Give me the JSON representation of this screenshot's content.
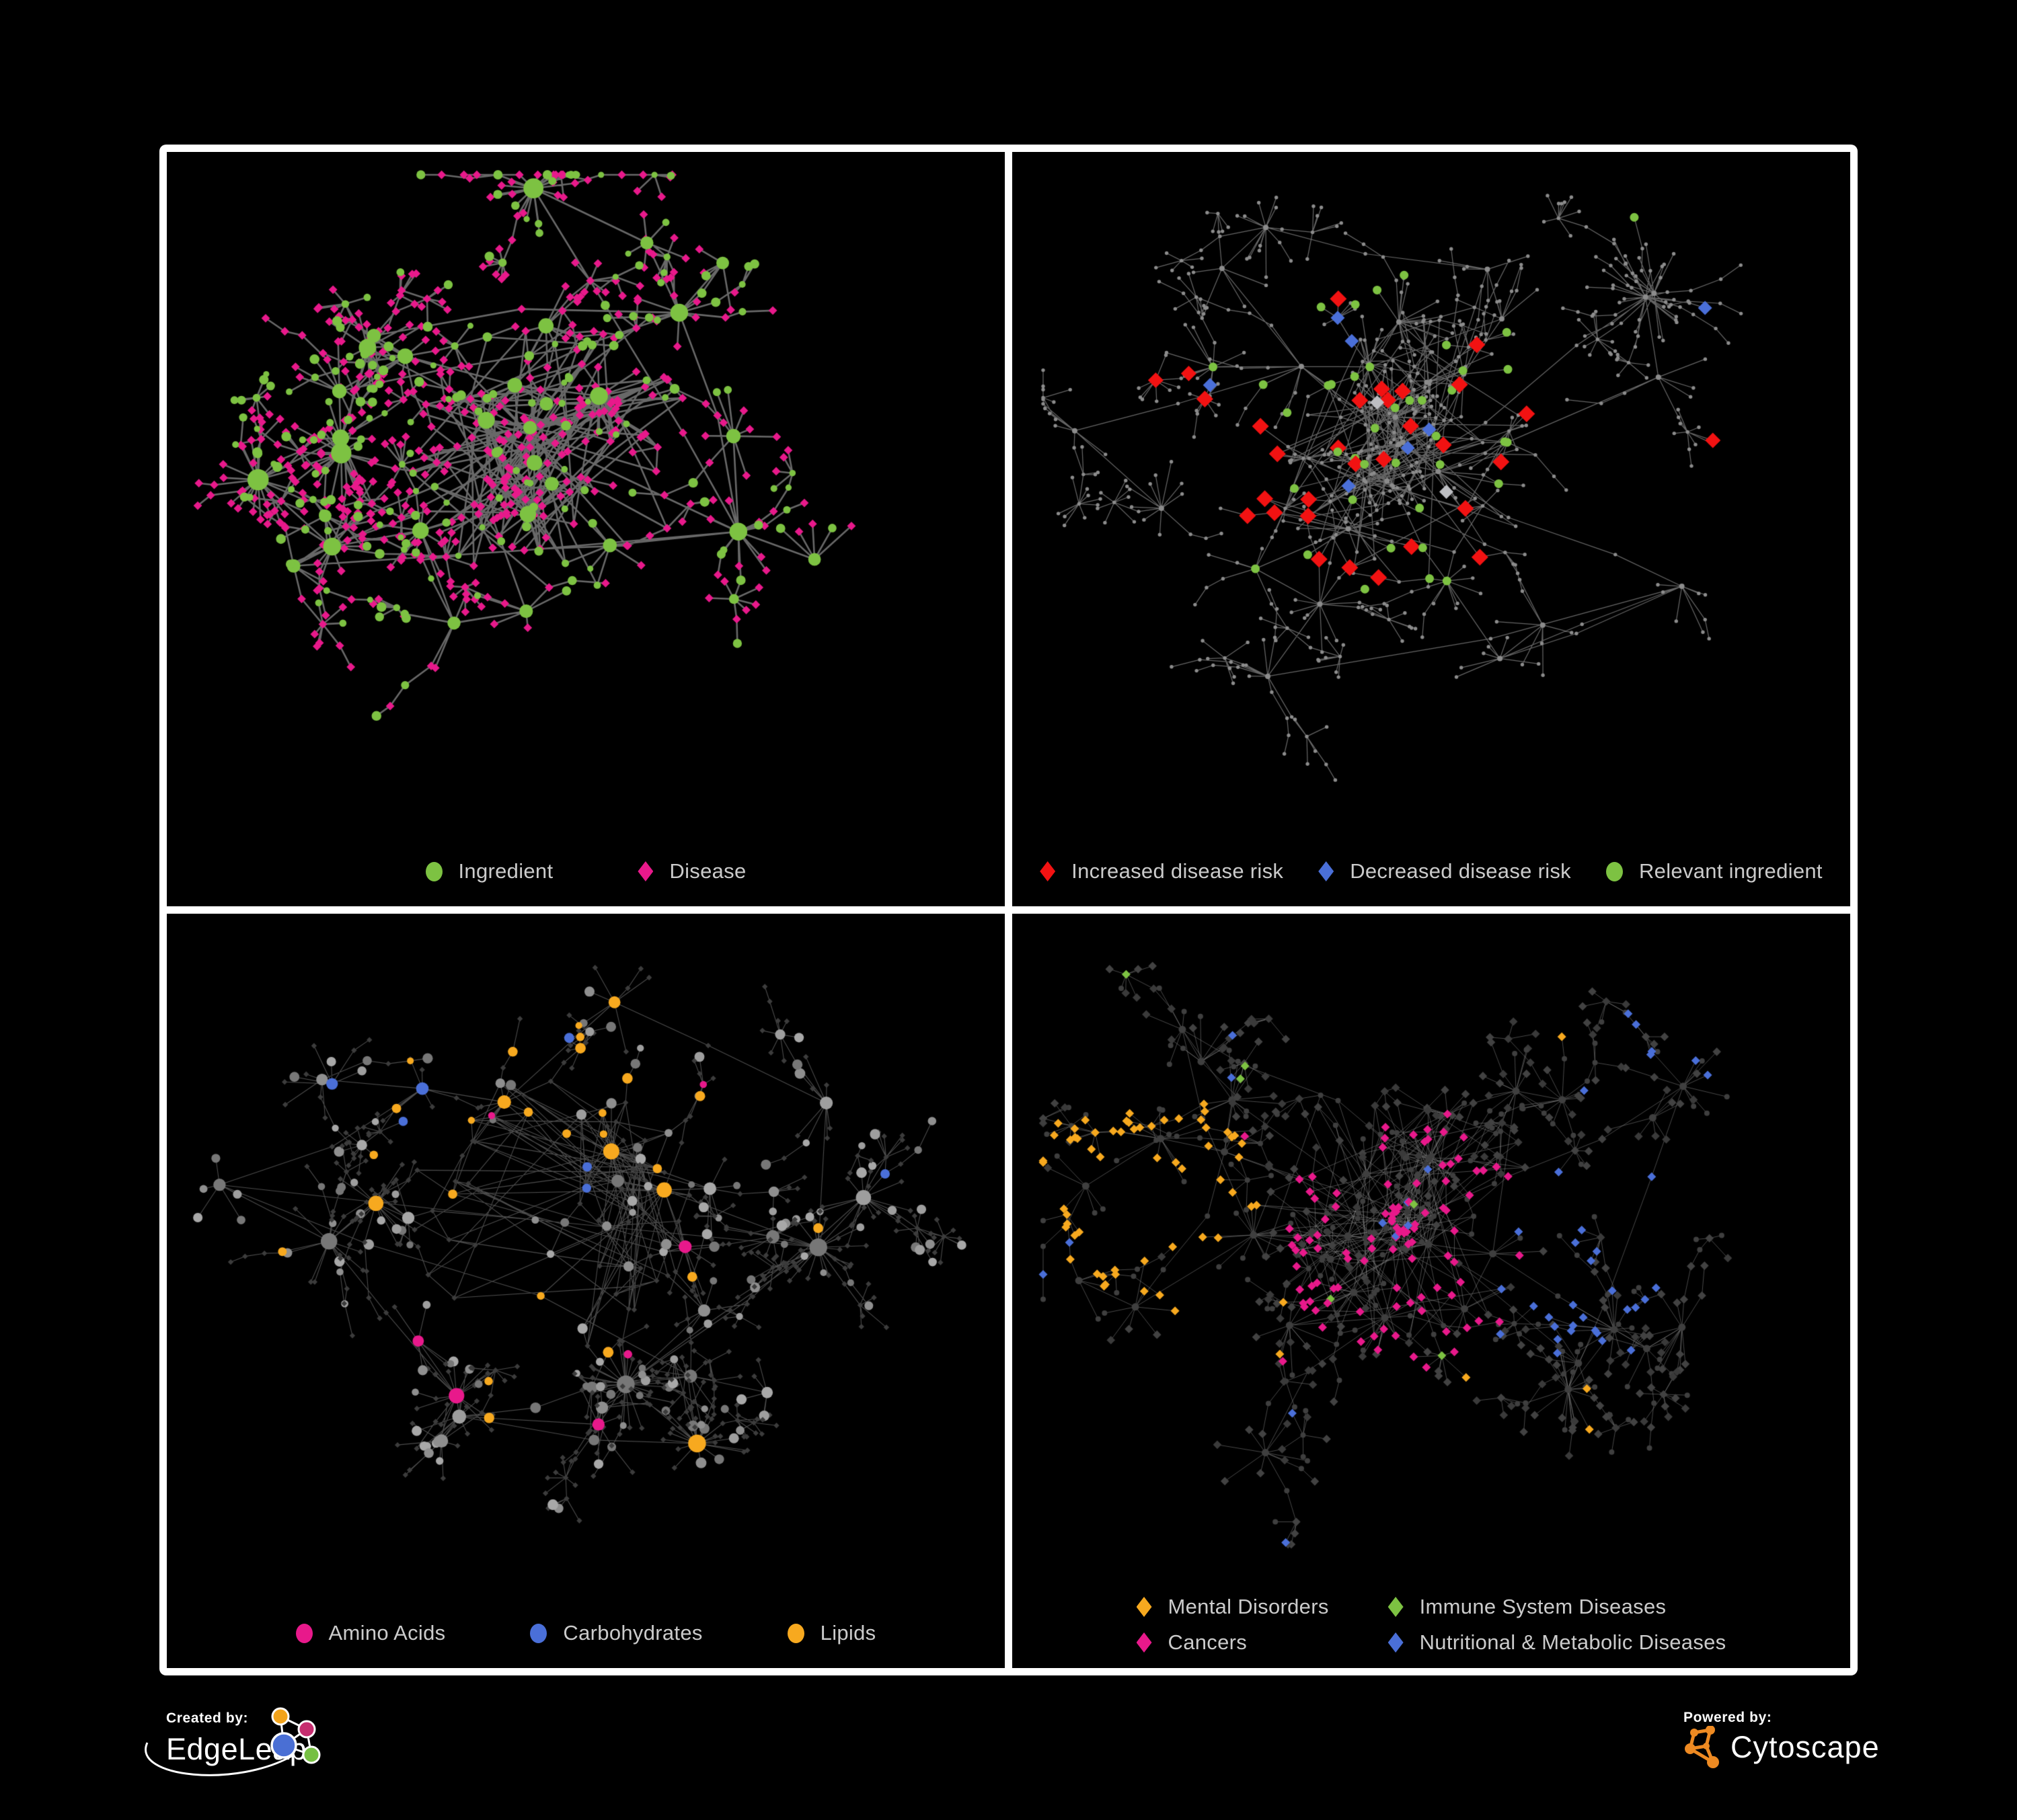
{
  "page": {
    "background": "#000000",
    "panel_border": "#FFFFFF"
  },
  "panels": [
    {
      "name": "ingredient-disease-network",
      "legend": [
        {
          "label": "Ingredient",
          "shape": "circle",
          "color": "#7DC242"
        },
        {
          "label": "Disease",
          "shape": "diamond",
          "color": "#E8198B"
        }
      ]
    },
    {
      "name": "disease-risk-network",
      "legend": [
        {
          "label": "Increased disease risk",
          "shape": "diamond",
          "color": "#F21212"
        },
        {
          "label": "Decreased disease risk",
          "shape": "diamond",
          "color": "#4A6FD8"
        },
        {
          "label": "Relevant ingredient",
          "shape": "circle",
          "color": "#7DC242"
        }
      ]
    },
    {
      "name": "nutrient-class-network",
      "legend": [
        {
          "label": "Amino Acids",
          "shape": "circle",
          "color": "#E8198B"
        },
        {
          "label": "Carbohydrates",
          "shape": "circle",
          "color": "#4A6FD8"
        },
        {
          "label": "Lipids",
          "shape": "circle",
          "color": "#F7A91F"
        }
      ]
    },
    {
      "name": "disease-category-network",
      "legend": [
        {
          "label": "Mental Disorders",
          "shape": "diamond",
          "color": "#F7A91F"
        },
        {
          "label": "Immune System Diseases",
          "shape": "diamond",
          "color": "#7DC242"
        },
        {
          "label": "Cancers",
          "shape": "diamond",
          "color": "#E8198B"
        },
        {
          "label": "Nutritional & Metabolic Diseases",
          "shape": "diamond",
          "color": "#4A6FD8"
        }
      ]
    }
  ],
  "graph_colors": {
    "green": "#7DC242",
    "magenta": "#E8198B",
    "red": "#F21212",
    "blue": "#4A6FD8",
    "orange": "#F7A91F",
    "silver": "#BDBEC2",
    "gray": "#9A9A9A",
    "grayDark": "#3C3C3C",
    "tiny": "#8C8C8C",
    "darkCircle": "#3F3F3F",
    "edge1": "#6E6E6E",
    "edge2": "#7E7E7E",
    "edge3": "#8A8A8A",
    "edge4": "#909090"
  },
  "footer": {
    "created_by_label": "Created by:",
    "edgeleap_brand": "EdgeLeap",
    "powered_by_label": "Powered by:",
    "cytoscape_brand": "Cytoscape",
    "edgeleap_colors": {
      "orange": "#F2A31B",
      "magenta": "#C62D6F",
      "blue": "#4A6FD4",
      "green": "#76C043"
    },
    "cytoscape_color": "#EE8A22"
  }
}
